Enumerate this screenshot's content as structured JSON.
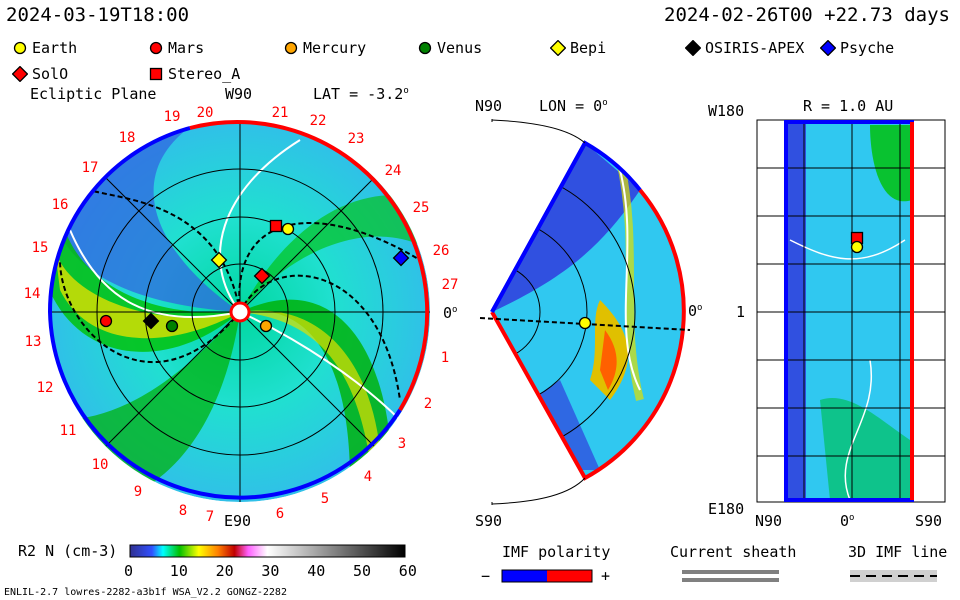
{
  "header": {
    "sim_time": "2024-03-19T18:00",
    "ref_time": "2024-02-26T00 +22.73 days"
  },
  "legend": [
    {
      "name": "Earth",
      "shape": "circle",
      "color": "#ffff00"
    },
    {
      "name": "Mars",
      "shape": "circle",
      "color": "#ff0000"
    },
    {
      "name": "Mercury",
      "shape": "circle",
      "color": "#ffa500"
    },
    {
      "name": "Venus",
      "shape": "circle",
      "color": "#008000"
    },
    {
      "name": "Bepi",
      "shape": "diamond",
      "color": "#ffff00"
    },
    {
      "name": "OSIRIS-APEX",
      "shape": "diamond",
      "color": "#000000"
    },
    {
      "name": "Psyche",
      "shape": "diamond",
      "color": "#0000ff"
    },
    {
      "name": "SolO",
      "shape": "diamond",
      "color": "#ff0000"
    },
    {
      "name": "Stereo_A",
      "shape": "square",
      "color": "#ff0000"
    }
  ],
  "ecliptic": {
    "title": "Ecliptic Plane",
    "lat": "LAT = -3.2",
    "top": "W90",
    "bottom": "E90",
    "right": "0",
    "numbers": [
      "27",
      "1",
      "2",
      "3",
      "4",
      "5",
      "6",
      "7",
      "8",
      "9",
      "10",
      "11",
      "12",
      "13",
      "14",
      "15",
      "16",
      "17",
      "18",
      "19",
      "20",
      "21",
      "22",
      "23",
      "24",
      "25",
      "26"
    ]
  },
  "meridional": {
    "title": "LON = 0",
    "top": "N90",
    "bottom": "S90",
    "right": "0"
  },
  "radial": {
    "title": "R = 1.0 AU",
    "top": "W180",
    "bottom": "E180",
    "mid": "1",
    "x_left": "N90",
    "x_mid": "0",
    "x_right": "S90"
  },
  "colorbar": {
    "label": "R",
    "label_rest": " N (cm",
    "ticks": [
      "0",
      "10",
      "20",
      "30",
      "40",
      "50",
      "60"
    ]
  },
  "imf": {
    "title": "IMF polarity",
    "minus": "−",
    "plus": "+",
    "neg_color": "#0000ff",
    "pos_color": "#ff0000"
  },
  "sheath": {
    "title": "Current sheath"
  },
  "imf_line": {
    "title": "3D IMF line"
  },
  "footer": "ENLIL-2.7 lowres-2282-a3b1f WSA_V2.2 GONGZ-2282",
  "chart_data": {
    "type": "heatmap",
    "quantity": "R2 N (cm-3)",
    "colorbar_range": [
      0,
      60
    ],
    "panels": [
      "Ecliptic Plane",
      "LON = 0",
      "R = 1.0 AU"
    ]
  }
}
